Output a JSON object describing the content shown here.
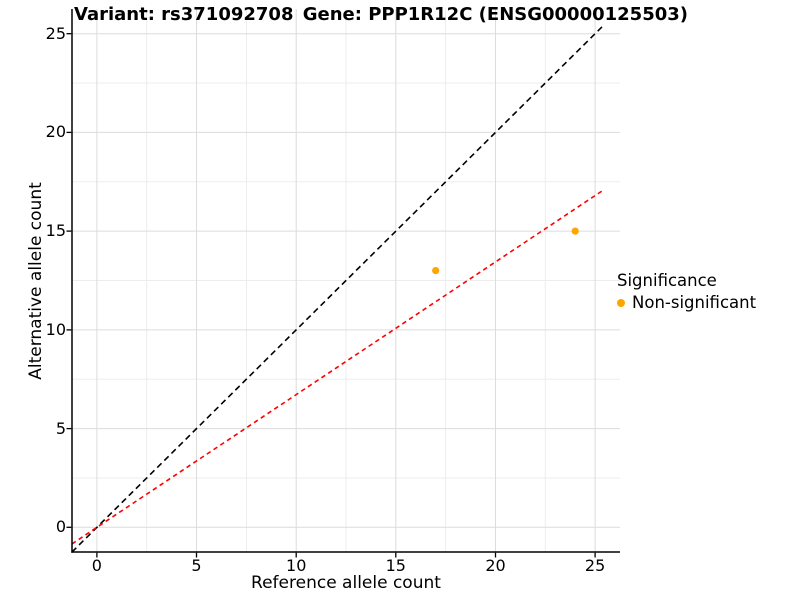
{
  "chart_data": {
    "type": "scatter",
    "title_left": "Variant: rs371092708",
    "title_right": "Gene: PPP1R12C (ENSG00000125503)",
    "xlabel": "Reference allele count",
    "ylabel": "Alternative allele count",
    "xlim": [
      -1.25,
      26.25
    ],
    "ylim": [
      -1.25,
      26.25
    ],
    "x_ticks": [
      0,
      5,
      10,
      15,
      20,
      25
    ],
    "y_ticks": [
      0,
      5,
      10,
      15,
      20,
      25
    ],
    "minor_tick_step": 2.5,
    "grid": {
      "major": true,
      "minor": true
    },
    "series": [
      {
        "name": "Non-significant",
        "marker": "circle",
        "color": "#FFA500",
        "points": [
          {
            "x": 17,
            "y": 13
          },
          {
            "x": 24,
            "y": 15
          }
        ]
      }
    ],
    "lines": [
      {
        "name": "identity-line",
        "slope": 1,
        "intercept": 0,
        "color": "#000000",
        "style": "dashed",
        "x_range": [
          -1.25,
          25.4
        ]
      },
      {
        "name": "fit-line",
        "slope": 0.672,
        "intercept": 0,
        "color": "#ff0000",
        "style": "dashed",
        "x_range": [
          -1.25,
          25.45
        ]
      }
    ],
    "legend": {
      "title": "Significance",
      "position": "right",
      "entries": [
        {
          "label": "Non-significant",
          "color": "#FFA500",
          "marker": "circle"
        }
      ]
    },
    "colors": {
      "background": "#ffffff",
      "grid_major": "#dcdcdc",
      "grid_minor": "#ededed",
      "axis": "#000000"
    }
  }
}
